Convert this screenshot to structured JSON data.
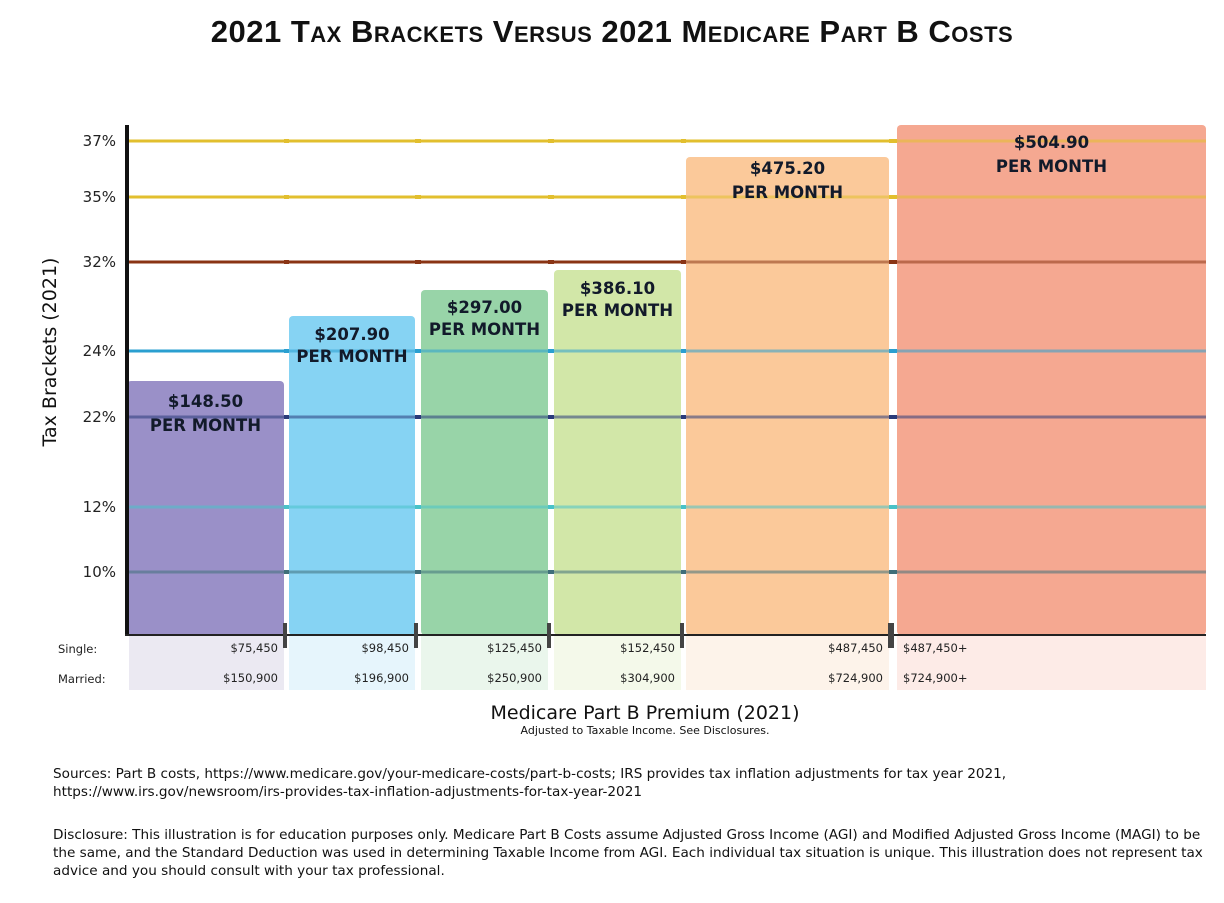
{
  "chart_data": {
    "type": "bar",
    "title": "2021 Tax Brackets Versus 2021 Medicare Part B Costs",
    "ylabel": "Tax Brackets (2021)",
    "xlabel": "Medicare Part B Premium (2021)",
    "xlabel_sub": "Adjusted to Taxable Income. See Disclosures.",
    "y_ticks": [
      {
        "label": "37%",
        "value": 37,
        "color": "#e2bf2e"
      },
      {
        "label": "35%",
        "value": 35,
        "color": "#e2bf2e"
      },
      {
        "label": "32%",
        "value": 32,
        "color": "#8a3414"
      },
      {
        "label": "24%",
        "value": 24,
        "color": "#2a9fd0"
      },
      {
        "label": "22%",
        "value": 22,
        "color": "#2a3b7a"
      },
      {
        "label": "12%",
        "value": 12,
        "color": "#49c2c8"
      },
      {
        "label": "10%",
        "value": 10,
        "color": "#3f6f7a"
      }
    ],
    "grid": true,
    "row_labels": {
      "single": "Single:",
      "married": "Married:"
    },
    "bars": [
      {
        "premium": "$148.50",
        "premium_value": 148.5,
        "sub": "PER MONTH",
        "single_max": "$75,450",
        "married_max": "$150,900",
        "color": "#9a90c8",
        "tint": "#ebe9f2"
      },
      {
        "premium": "$207.90",
        "premium_value": 207.9,
        "sub": "PER MONTH",
        "single_max": "$98,450",
        "married_max": "$196,900",
        "color": "#86d3f3",
        "tint": "#e6f5fc"
      },
      {
        "premium": "$297.00",
        "premium_value": 297.0,
        "sub": "PER MONTH",
        "single_max": "$125,450",
        "married_max": "$250,900",
        "color": "#98d4a8",
        "tint": "#eaf6ec"
      },
      {
        "premium": "$386.10",
        "premium_value": 386.1,
        "sub": "PER MONTH",
        "single_max": "$152,450",
        "married_max": "$304,900",
        "color": "#d2e7a8",
        "tint": "#f4f9ea"
      },
      {
        "premium": "$475.20",
        "premium_value": 475.2,
        "sub": "PER MONTH",
        "single_max": "$487,450",
        "married_max": "$724,900",
        "color": "#fbc99a",
        "tint": "#fdf3ea"
      },
      {
        "premium": "$504.90",
        "premium_value": 504.9,
        "sub": "PER MONTH",
        "single_max": "$487,450+",
        "married_max": "$724,900+",
        "color": "#f5a891",
        "tint": "#fdebe7"
      }
    ]
  },
  "notes": {
    "sources_label": "Sources:",
    "sources_text": " Part B costs, https://www.medicare.gov/your-medicare-costs/part-b-costs;   IRS provides tax inflation adjustments for tax year 2021, https://www.irs.gov/newsroom/irs-provides-tax-inflation-adjustments-for-tax-year-2021",
    "disclosure_label": "Disclosure:",
    "disclosure_text": " This illustration is for education purposes only. Medicare Part B Costs assume Adjusted Gross Income (AGI) and Modified Adjusted Gross Income (MAGI) to be the same, and the Standard Deduction was used in determining Taxable Income from AGI. Each individual tax situation is unique. This illustration does not represent tax advice and you should consult with your tax professional."
  }
}
